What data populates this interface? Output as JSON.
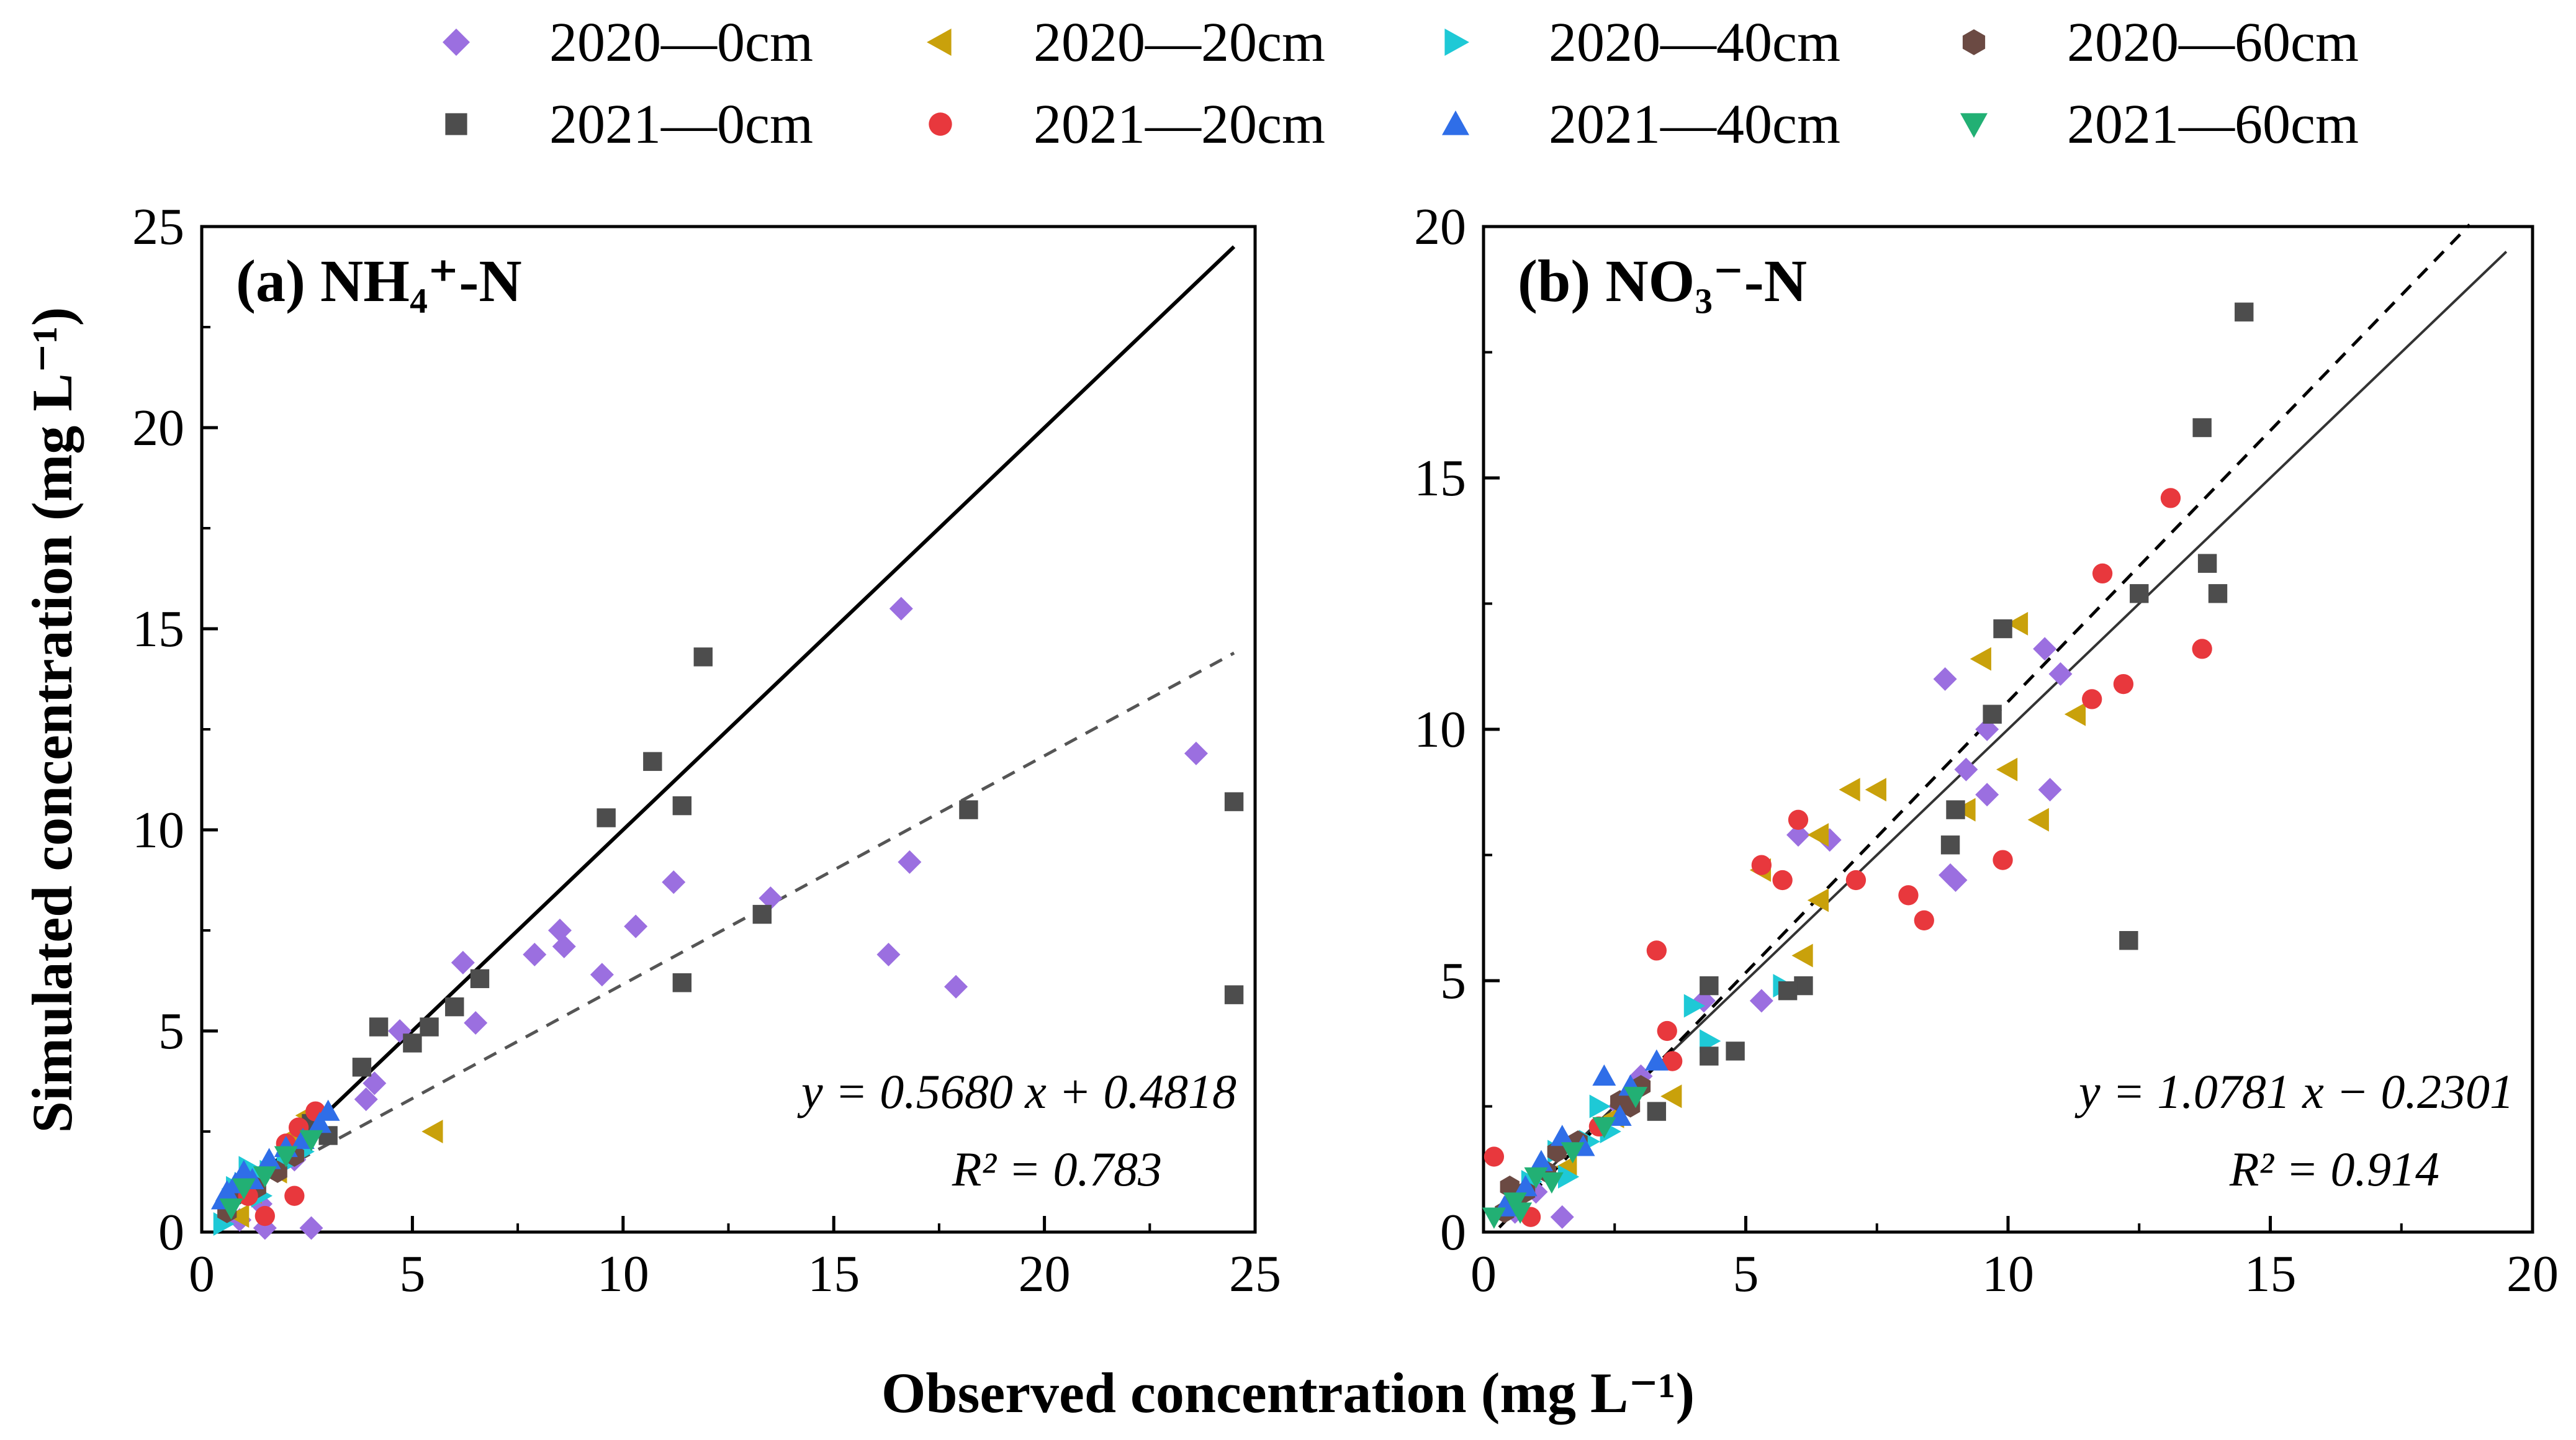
{
  "legend": [
    {
      "label": "2020—0cm",
      "marker": "diamond",
      "color": "#9b6fe0"
    },
    {
      "label": "2020—20cm",
      "marker": "triangle-left",
      "color": "#c9a10b"
    },
    {
      "label": "2020—40cm",
      "marker": "triangle-right",
      "color": "#1ec9d6"
    },
    {
      "label": "2020—60cm",
      "marker": "hexagon",
      "color": "#6b4a43"
    },
    {
      "label": "2021—0cm",
      "marker": "square",
      "color": "#4d4d4d"
    },
    {
      "label": "2021—20cm",
      "marker": "circle",
      "color": "#e8383d"
    },
    {
      "label": "2021—40cm",
      "marker": "triangle-up",
      "color": "#2f6ee8"
    },
    {
      "label": "2021—60cm",
      "marker": "triangle-down",
      "color": "#22b074"
    }
  ],
  "xlabel": "Observed concentration (mg L⁻¹)",
  "ylabel": "Simulated concentration (mg L⁻¹)",
  "chart_data": [
    {
      "type": "scatter",
      "title": "(a) NH₄⁺-N",
      "xlim": [
        0,
        25
      ],
      "ylim": [
        0,
        25
      ],
      "xticks": [
        "0",
        "5",
        "10",
        "15",
        "20",
        "25"
      ],
      "yticks": [
        "0",
        "5",
        "10",
        "15",
        "20",
        "25"
      ],
      "equation": "y = 0.5680 x + 0.4818",
      "r2": "R² = 0.783",
      "one_to_one": {
        "x": [
          0.8,
          24.5
        ],
        "y": [
          0.8,
          24.5
        ]
      },
      "fit_line": {
        "slope": 0.568,
        "intercept": 0.4818,
        "x": [
          0.8,
          24.5
        ]
      },
      "series": [
        {
          "name": "2020—0cm",
          "points": [
            [
              16.6,
              15.5
            ],
            [
              23.6,
              11.9
            ],
            [
              16.8,
              9.2
            ],
            [
              16.3,
              6.9
            ],
            [
              17.9,
              6.1
            ],
            [
              13.5,
              8.3
            ],
            [
              11.2,
              8.7
            ],
            [
              10.3,
              7.6
            ],
            [
              9.5,
              6.4
            ],
            [
              8.6,
              7.1
            ],
            [
              8.5,
              7.5
            ],
            [
              7.9,
              6.9
            ],
            [
              6.5,
              5.2
            ],
            [
              6.2,
              6.7
            ],
            [
              4.7,
              5.0
            ],
            [
              3.9,
              3.3
            ],
            [
              4.1,
              3.7
            ],
            [
              1.5,
              0.1
            ],
            [
              2.6,
              0.1
            ],
            [
              0.9,
              0.3
            ],
            [
              1.4,
              0.7
            ],
            [
              2.2,
              1.8
            ],
            [
              2.6,
              2.5
            ]
          ]
        },
        {
          "name": "2020—20cm",
          "points": [
            [
              5.5,
              2.5
            ],
            [
              2.5,
              2.9
            ],
            [
              1.8,
              1.5
            ],
            [
              0.6,
              0.6
            ],
            [
              1.2,
              1.0
            ],
            [
              2.2,
              2.4
            ],
            [
              0.9,
              0.4
            ]
          ]
        },
        {
          "name": "2020—40cm",
          "points": [
            [
              1.0,
              1.2
            ],
            [
              1.3,
              1.4
            ],
            [
              0.7,
              0.8
            ],
            [
              1.6,
              1.5
            ],
            [
              2.0,
              1.7
            ],
            [
              0.5,
              0.2
            ],
            [
              1.1,
              1.6
            ],
            [
              2.4,
              2.0
            ],
            [
              0.8,
              1.1
            ],
            [
              1.4,
              0.9
            ]
          ]
        },
        {
          "name": "2020—60cm",
          "points": [
            [
              0.8,
              0.9
            ],
            [
              1.3,
              1.1
            ],
            [
              1.8,
              1.5
            ],
            [
              2.2,
              1.9
            ],
            [
              0.6,
              0.5
            ]
          ]
        },
        {
          "name": "2021—0cm",
          "points": [
            [
              11.9,
              14.3
            ],
            [
              10.7,
              11.7
            ],
            [
              9.6,
              10.3
            ],
            [
              11.4,
              10.6
            ],
            [
              18.2,
              10.5
            ],
            [
              24.5,
              10.7
            ],
            [
              24.5,
              5.9
            ],
            [
              13.3,
              7.9
            ],
            [
              11.4,
              6.2
            ],
            [
              6.6,
              6.3
            ],
            [
              6.0,
              5.6
            ],
            [
              5.4,
              5.1
            ],
            [
              5.0,
              4.7
            ],
            [
              4.2,
              5.1
            ],
            [
              3.8,
              4.1
            ],
            [
              3.0,
              2.4
            ],
            [
              2.6,
              2.7
            ]
          ]
        },
        {
          "name": "2021—20cm",
          "points": [
            [
              2.3,
              2.6
            ],
            [
              2.2,
              0.9
            ],
            [
              1.5,
              0.4
            ],
            [
              2.7,
              3.0
            ],
            [
              1.1,
              0.9
            ],
            [
              2.0,
              2.2
            ]
          ]
        },
        {
          "name": "2021—40cm",
          "points": [
            [
              0.5,
              0.8
            ],
            [
              0.8,
              1.2
            ],
            [
              1.2,
              1.3
            ],
            [
              1.6,
              1.8
            ],
            [
              2.0,
              2.1
            ],
            [
              2.4,
              2.3
            ],
            [
              2.8,
              2.7
            ],
            [
              3.0,
              3.0
            ],
            [
              0.6,
              1.0
            ],
            [
              1.0,
              1.5
            ]
          ]
        },
        {
          "name": "2021—60cm",
          "points": [
            [
              1.0,
              1.1
            ],
            [
              1.5,
              1.4
            ],
            [
              2.0,
              1.9
            ],
            [
              0.7,
              0.6
            ],
            [
              2.6,
              2.3
            ]
          ]
        }
      ]
    },
    {
      "type": "scatter",
      "title": "(b) NO₃⁻-N",
      "xlim": [
        0,
        20
      ],
      "ylim": [
        0,
        20
      ],
      "xticks": [
        "0",
        "5",
        "10",
        "15",
        "20"
      ],
      "yticks": [
        "0",
        "5",
        "10",
        "15",
        "20"
      ],
      "equation": "y = 1.0781 x − 0.2301",
      "r2": "R² = 0.914",
      "one_to_one": {
        "x": [
          0.3,
          19.5
        ],
        "y": [
          0.3,
          19.5
        ]
      },
      "fit_line": {
        "slope": 1.0781,
        "intercept": -0.2301,
        "x": [
          0.3,
          18.8
        ]
      },
      "series": [
        {
          "name": "2020—0cm",
          "points": [
            [
              8.8,
              11.0
            ],
            [
              10.7,
              11.6
            ],
            [
              11.0,
              11.1
            ],
            [
              9.6,
              10.0
            ],
            [
              9.6,
              8.7
            ],
            [
              9.2,
              9.2
            ],
            [
              10.8,
              8.8
            ],
            [
              8.9,
              7.1
            ],
            [
              9.0,
              7.0
            ],
            [
              6.0,
              7.9
            ],
            [
              6.6,
              7.8
            ],
            [
              5.3,
              4.6
            ],
            [
              4.2,
              4.6
            ],
            [
              3.0,
              3.1
            ],
            [
              2.6,
              2.5
            ],
            [
              1.5,
              0.3
            ],
            [
              1.0,
              0.8
            ],
            [
              0.6,
              0.4
            ]
          ]
        },
        {
          "name": "2020—20cm",
          "points": [
            [
              10.2,
              12.1
            ],
            [
              9.5,
              11.4
            ],
            [
              10.0,
              9.2
            ],
            [
              11.3,
              10.3
            ],
            [
              10.6,
              8.2
            ],
            [
              7.5,
              8.8
            ],
            [
              7.0,
              8.8
            ],
            [
              9.2,
              8.4
            ],
            [
              6.4,
              7.9
            ],
            [
              5.3,
              7.2
            ],
            [
              6.4,
              6.6
            ],
            [
              6.1,
              5.5
            ],
            [
              3.6,
              2.7
            ],
            [
              2.5,
              2.3
            ],
            [
              1.6,
              1.3
            ]
          ]
        },
        {
          "name": "2020—40cm",
          "points": [
            [
              4.0,
              4.5
            ],
            [
              5.7,
              4.9
            ],
            [
              4.3,
              3.8
            ],
            [
              2.2,
              2.5
            ],
            [
              1.4,
              1.6
            ],
            [
              2.0,
              1.8
            ],
            [
              0.9,
              1.0
            ],
            [
              1.6,
              1.1
            ],
            [
              2.4,
              2.0
            ]
          ]
        },
        {
          "name": "2020—60cm",
          "points": [
            [
              0.4,
              0.4
            ],
            [
              0.6,
              0.7
            ],
            [
              0.8,
              0.8
            ],
            [
              1.2,
              1.2
            ],
            [
              1.4,
              1.6
            ],
            [
              2.6,
              2.6
            ],
            [
              3.0,
              2.9
            ],
            [
              2.8,
              2.5
            ],
            [
              1.8,
              1.8
            ],
            [
              0.5,
              0.9
            ]
          ]
        },
        {
          "name": "2021—0cm",
          "points": [
            [
              14.5,
              18.3
            ],
            [
              13.7,
              16.0
            ],
            [
              13.8,
              13.3
            ],
            [
              14.0,
              12.7
            ],
            [
              12.5,
              12.7
            ],
            [
              9.9,
              12.0
            ],
            [
              9.7,
              10.3
            ],
            [
              9.0,
              8.4
            ],
            [
              8.9,
              7.7
            ],
            [
              12.3,
              5.8
            ],
            [
              6.1,
              4.9
            ],
            [
              5.8,
              4.8
            ],
            [
              4.3,
              4.9
            ],
            [
              4.8,
              3.6
            ],
            [
              4.3,
              3.5
            ],
            [
              3.3,
              2.4
            ]
          ]
        },
        {
          "name": "2021—20cm",
          "points": [
            [
              13.1,
              14.6
            ],
            [
              11.8,
              13.1
            ],
            [
              13.7,
              11.6
            ],
            [
              12.2,
              10.9
            ],
            [
              11.6,
              10.6
            ],
            [
              6.0,
              8.2
            ],
            [
              5.3,
              7.3
            ],
            [
              5.7,
              7.0
            ],
            [
              7.1,
              7.0
            ],
            [
              8.1,
              6.7
            ],
            [
              8.4,
              6.2
            ],
            [
              9.9,
              7.4
            ],
            [
              3.3,
              5.6
            ],
            [
              3.5,
              4.0
            ],
            [
              3.6,
              3.4
            ],
            [
              0.2,
              1.5
            ],
            [
              0.9,
              0.3
            ],
            [
              2.2,
              2.1
            ]
          ]
        },
        {
          "name": "2021—40cm",
          "points": [
            [
              2.3,
              3.1
            ],
            [
              3.3,
              3.4
            ],
            [
              2.8,
              2.9
            ],
            [
              1.9,
              1.7
            ],
            [
              2.6,
              2.3
            ],
            [
              1.1,
              1.4
            ],
            [
              0.4,
              0.5
            ],
            [
              0.8,
              0.9
            ],
            [
              1.5,
              1.9
            ]
          ]
        },
        {
          "name": "2021—60cm",
          "points": [
            [
              0.2,
              0.3
            ],
            [
              0.6,
              0.6
            ],
            [
              1.0,
              1.1
            ],
            [
              1.7,
              1.6
            ],
            [
              2.3,
              2.1
            ],
            [
              2.9,
              2.7
            ],
            [
              0.7,
              0.4
            ],
            [
              1.3,
              1.0
            ]
          ]
        }
      ]
    }
  ]
}
